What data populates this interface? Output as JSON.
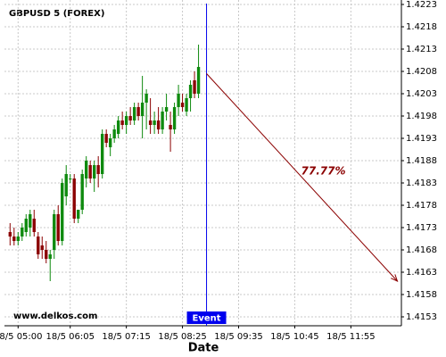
{
  "chart_data": {
    "type": "candlestick",
    "title": "GBPUSD 5 (FOREX)",
    "x_label": "Date",
    "watermark": "www.delkos.com",
    "up_color": "#0e8a0e",
    "down_color": "#8b0000",
    "grid": true,
    "xlim": [
      283,
      778
    ],
    "xticks": [
      {
        "value": 300,
        "label": "18/5 05:00"
      },
      {
        "value": 365,
        "label": "18/5 06:05"
      },
      {
        "value": 435,
        "label": "18/5 07:15"
      },
      {
        "value": 505,
        "label": "18/5 08:25"
      },
      {
        "value": 575,
        "label": "18/5 09:35"
      },
      {
        "value": 645,
        "label": "18/5 10:45"
      },
      {
        "value": 715,
        "label": "18/5 11:55"
      }
    ],
    "ylim": [
      1.4151,
      1.4224
    ],
    "yticks": [
      1.4153,
      1.4158,
      1.4163,
      1.4168,
      1.4173,
      1.4178,
      1.4183,
      1.4188,
      1.4193,
      1.4198,
      1.4203,
      1.4208,
      1.4213,
      1.4218,
      1.4223
    ],
    "x": [
      290,
      295,
      300,
      305,
      310,
      315,
      320,
      325,
      330,
      335,
      340,
      345,
      350,
      355,
      360,
      365,
      370,
      375,
      380,
      385,
      390,
      395,
      400,
      405,
      410,
      415,
      420,
      425,
      430,
      435,
      440,
      445,
      450,
      455,
      460,
      465,
      470,
      475,
      480,
      485,
      490,
      495,
      500,
      505,
      510,
      515,
      520,
      525
    ],
    "open": [
      1.4172,
      1.4171,
      1.417,
      1.4171,
      1.4172,
      1.4173,
      1.4175,
      1.4171,
      1.4169,
      1.4168,
      1.4166,
      1.4168,
      1.4176,
      1.417,
      1.418,
      1.4184,
      1.4184,
      1.4175,
      1.4177,
      1.4184,
      1.4187,
      1.4184,
      1.4187,
      1.4185,
      1.4194,
      1.4191,
      1.4193,
      1.4194,
      1.4197,
      1.4196,
      1.4198,
      1.4197,
      1.42,
      1.4198,
      1.4201,
      1.4197,
      1.4196,
      1.4197,
      1.4195,
      1.4199,
      1.4196,
      1.4195,
      1.42,
      1.4201,
      1.4199,
      1.4202,
      1.4206,
      1.4203
    ],
    "high": [
      1.4174,
      1.4173,
      1.4172,
      1.4174,
      1.4176,
      1.4177,
      1.4177,
      1.4172,
      1.4171,
      1.417,
      1.4168,
      1.4177,
      1.4178,
      1.4184,
      1.4187,
      1.4185,
      1.4185,
      1.4177,
      1.4186,
      1.4189,
      1.4188,
      1.4188,
      1.4189,
      1.4195,
      1.4195,
      1.4194,
      1.4196,
      1.4198,
      1.4199,
      1.4199,
      1.42,
      1.4201,
      1.4201,
      1.4207,
      1.4204,
      1.4202,
      1.4199,
      1.42,
      1.42,
      1.4203,
      1.4199,
      1.4201,
      1.4205,
      1.4203,
      1.4203,
      1.4206,
      1.4208,
      1.4214
    ],
    "low": [
      1.4169,
      1.4169,
      1.4169,
      1.417,
      1.4171,
      1.4171,
      1.4171,
      1.4166,
      1.4166,
      1.4165,
      1.4161,
      1.4166,
      1.4169,
      1.4169,
      1.4178,
      1.4183,
      1.4174,
      1.4174,
      1.4176,
      1.4182,
      1.4183,
      1.4181,
      1.4182,
      1.4184,
      1.4191,
      1.4189,
      1.4192,
      1.4193,
      1.4195,
      1.4194,
      1.4196,
      1.4196,
      1.4197,
      1.4193,
      1.4195,
      1.4194,
      1.4194,
      1.4194,
      1.4194,
      1.4197,
      1.419,
      1.4194,
      1.4198,
      1.4199,
      1.4198,
      1.4199,
      1.4202,
      1.4202
    ],
    "close": [
      1.4171,
      1.417,
      1.4171,
      1.4173,
      1.4175,
      1.4176,
      1.4172,
      1.4167,
      1.4168,
      1.4166,
      1.4167,
      1.4176,
      1.417,
      1.4183,
      1.4185,
      1.4184,
      1.4175,
      1.4177,
      1.4185,
      1.4188,
      1.4184,
      1.4187,
      1.4185,
      1.4194,
      1.4192,
      1.4193,
      1.4195,
      1.4197,
      1.4196,
      1.4198,
      1.4197,
      1.42,
      1.4198,
      1.4201,
      1.4203,
      1.4196,
      1.4197,
      1.4195,
      1.4199,
      1.42,
      1.4195,
      1.42,
      1.4203,
      1.42,
      1.4202,
      1.4205,
      1.4203,
      1.4209
    ],
    "event": {
      "label": "Event",
      "x": 535,
      "color": "#0000ee"
    },
    "projection": {
      "x": [
        535,
        773
      ],
      "y": [
        1.42075,
        1.4161
      ],
      "label": "77.77%",
      "color": "#8b0000"
    }
  }
}
